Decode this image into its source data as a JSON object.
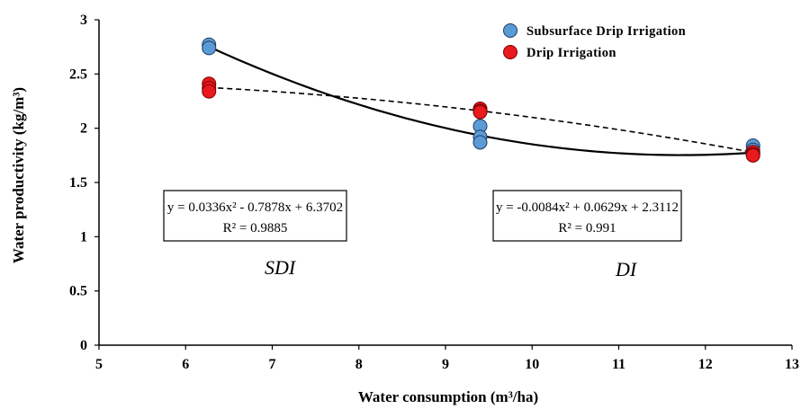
{
  "chart_data": {
    "type": "scatter",
    "title": "",
    "xlabel": "Water consumption (m³/ha)",
    "ylabel": "Water productivity (kg/m³)",
    "xlim": [
      5,
      13
    ],
    "ylim": [
      0,
      3
    ],
    "x_ticks": [
      "5",
      "6",
      "7",
      "8",
      "9",
      "10",
      "11",
      "12",
      "13"
    ],
    "y_ticks": [
      "0",
      "0.5",
      "1",
      "1.5",
      "2",
      "2.5",
      "3"
    ],
    "grid": false,
    "legend_position": "top-right",
    "series": [
      {
        "name": "Subsurface Drip Irrigation",
        "color": "#5b9bd5",
        "points": [
          {
            "x": 6.27,
            "y": 2.77
          },
          {
            "x": 6.27,
            "y": 2.74
          },
          {
            "x": 9.4,
            "y": 2.02
          },
          {
            "x": 9.4,
            "y": 1.92
          },
          {
            "x": 9.4,
            "y": 1.87
          },
          {
            "x": 12.55,
            "y": 1.84
          },
          {
            "x": 12.55,
            "y": 1.8
          },
          {
            "x": 12.55,
            "y": 1.77
          }
        ],
        "trendline": {
          "style": "solid",
          "equation": "y = 0.0336x² - 0.7878x + 6.3702",
          "r2": "R² = 0.9885",
          "coefficients": [
            0.0336,
            -0.7878,
            6.3702
          ]
        }
      },
      {
        "name": "Drip Irrigation",
        "color": "#e8191f",
        "points": [
          {
            "x": 6.27,
            "y": 2.41
          },
          {
            "x": 6.27,
            "y": 2.37
          },
          {
            "x": 6.27,
            "y": 2.34
          },
          {
            "x": 9.4,
            "y": 2.18
          },
          {
            "x": 9.4,
            "y": 2.16
          },
          {
            "x": 9.4,
            "y": 2.15
          },
          {
            "x": 12.55,
            "y": 1.78
          },
          {
            "x": 12.55,
            "y": 1.76
          },
          {
            "x": 12.55,
            "y": 1.75
          }
        ],
        "trendline": {
          "style": "dashed",
          "equation": "y = -0.0084x² + 0.0629x + 2.3112",
          "r2": "R² = 0.991",
          "coefficients": [
            -0.0084,
            0.0629,
            2.3112
          ]
        }
      }
    ],
    "annotations": [
      "SDI",
      "DI"
    ]
  }
}
